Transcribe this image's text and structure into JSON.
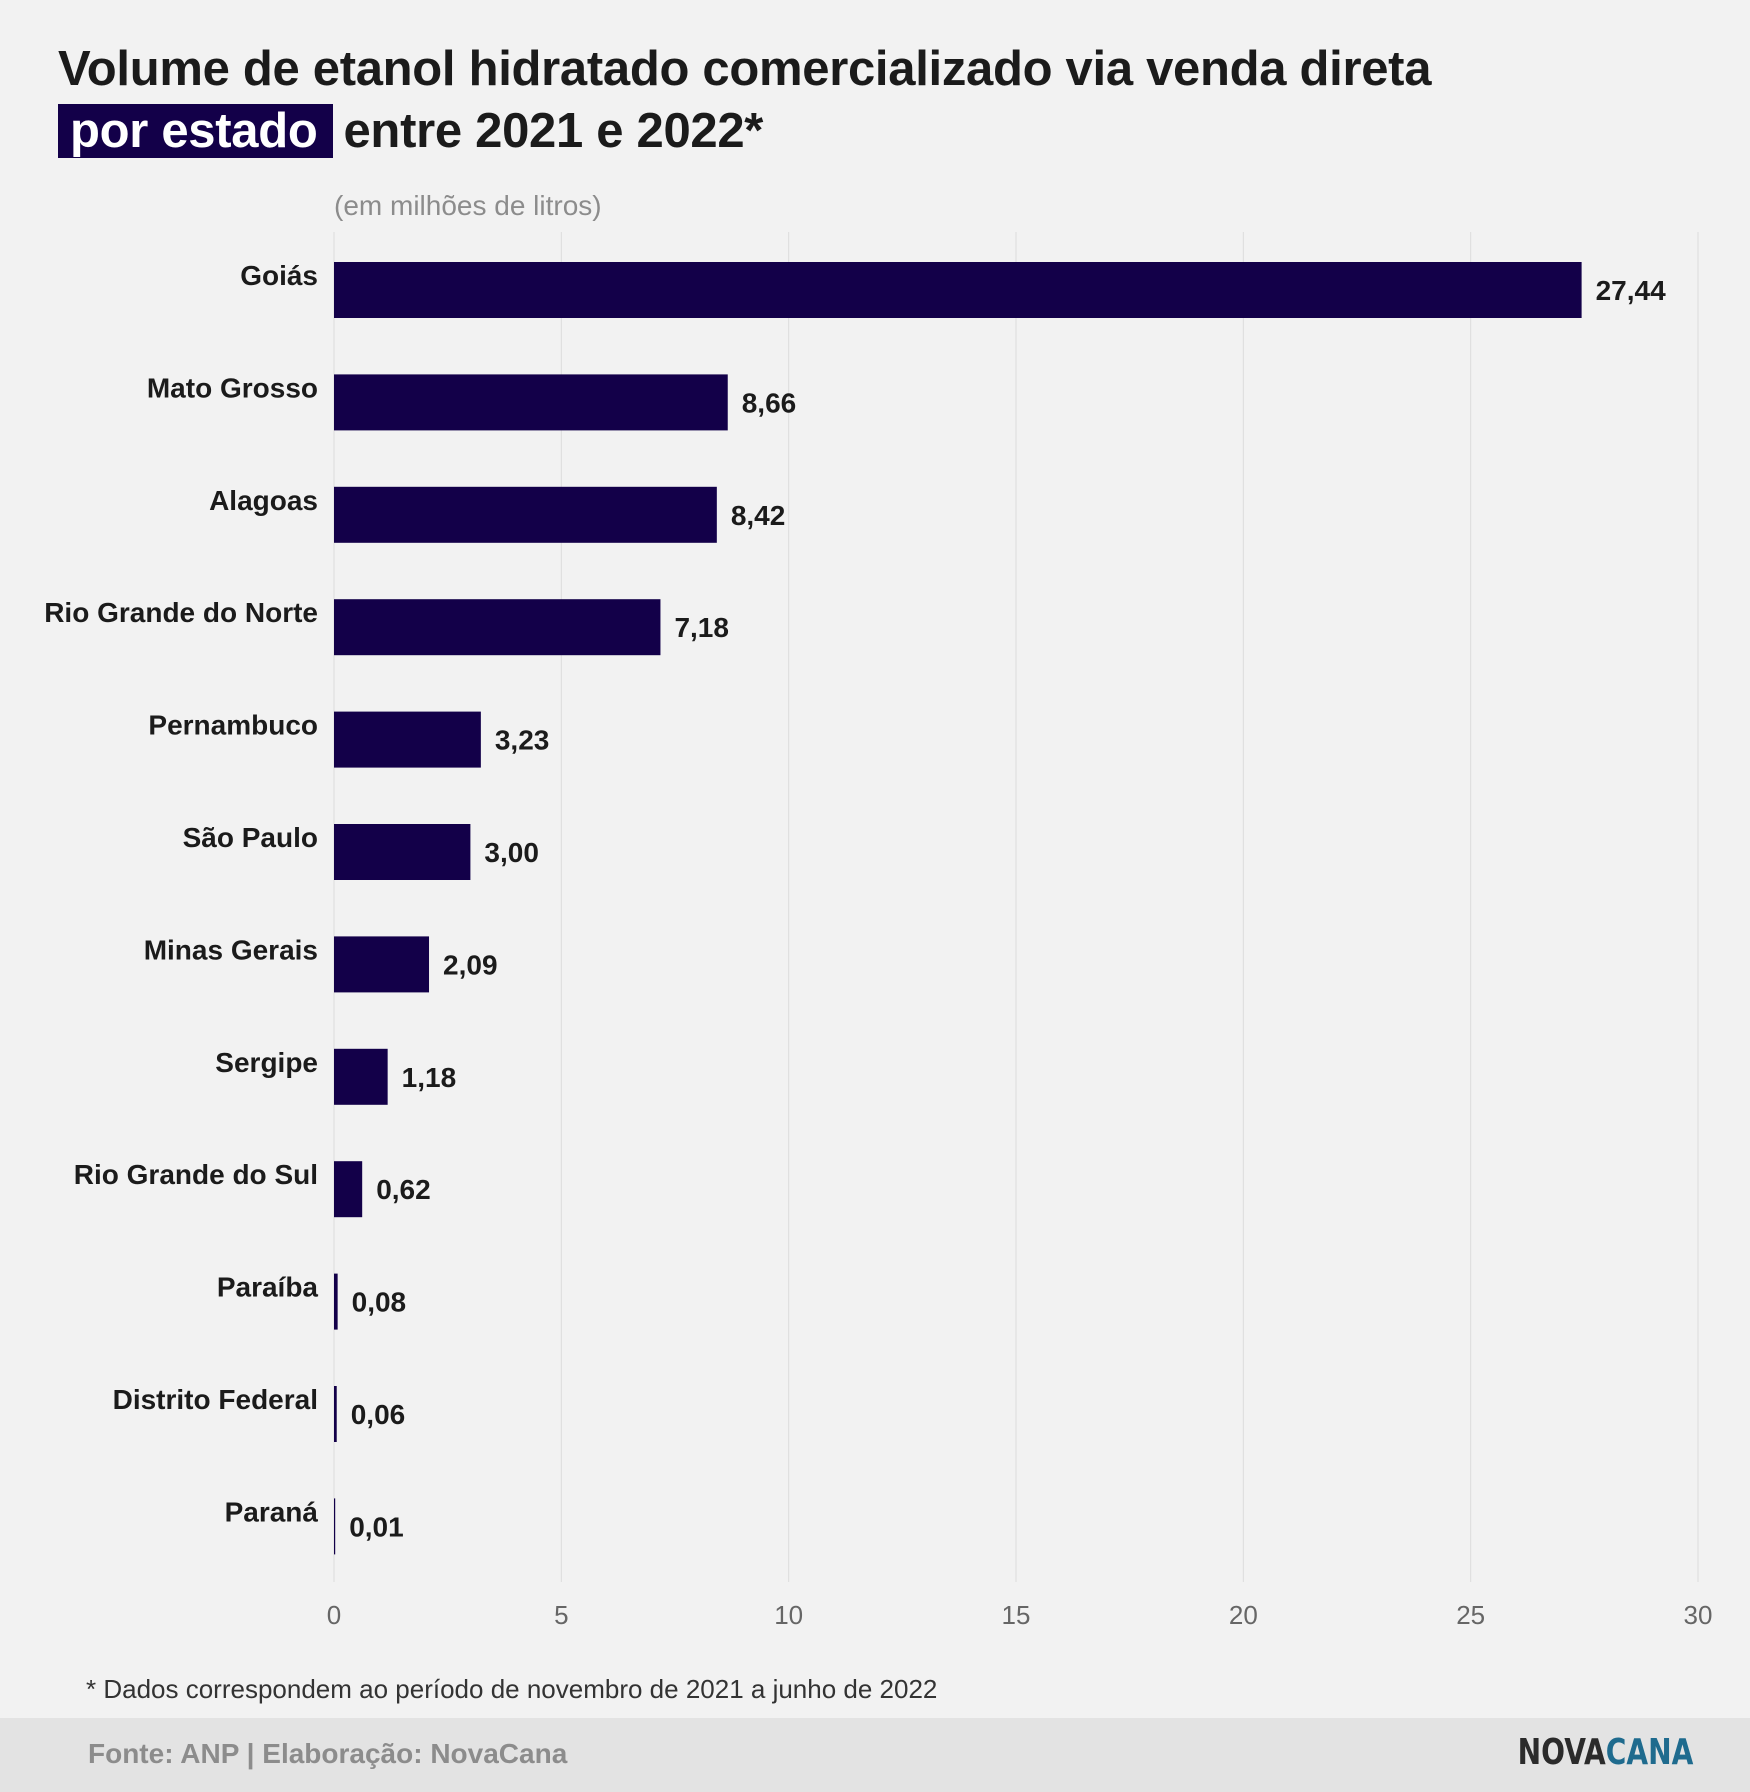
{
  "title": {
    "line1": "Volume de etanol hidratado comercializado via venda direta",
    "highlight": "por estado",
    "line2_rest": "entre 2021 e 2022*"
  },
  "subtitle": "(em milhões de litros)",
  "footnote": "* Dados correspondem ao período de novembro de 2021 a junho de 2022",
  "source": "Fonte: ANP | Elaboração: NovaCana",
  "logo": {
    "part1": "NOVA",
    "part2": "CANA"
  },
  "colors": {
    "bar": "#130049",
    "highlight_bg": "#130049",
    "grid": "#dcdcdc",
    "background": "#f2f2f2",
    "logo_accent": "#1f6b8e"
  },
  "chart_data": {
    "type": "bar",
    "orientation": "horizontal",
    "categories": [
      "Goiás",
      "Mato Grosso",
      "Alagoas",
      "Rio Grande do Norte",
      "Pernambuco",
      "São Paulo",
      "Minas Gerais",
      "Sergipe",
      "Rio Grande do Sul",
      "Paraíba",
      "Distrito Federal",
      "Paraná"
    ],
    "values": [
      27.44,
      8.66,
      8.42,
      7.18,
      3.23,
      3.0,
      2.09,
      1.18,
      0.62,
      0.08,
      0.06,
      0.01
    ],
    "value_labels": [
      "27,44",
      "8,66",
      "8,42",
      "7,18",
      "3,23",
      "3,00",
      "2,09",
      "1,18",
      "0,62",
      "0,08",
      "0,06",
      "0,01"
    ],
    "xlim": [
      0,
      30
    ],
    "xticks": [
      0,
      5,
      10,
      15,
      20,
      25,
      30
    ],
    "xtick_labels": [
      "0",
      "5",
      "10",
      "15",
      "20",
      "25",
      "30"
    ],
    "grid": "vertical"
  }
}
